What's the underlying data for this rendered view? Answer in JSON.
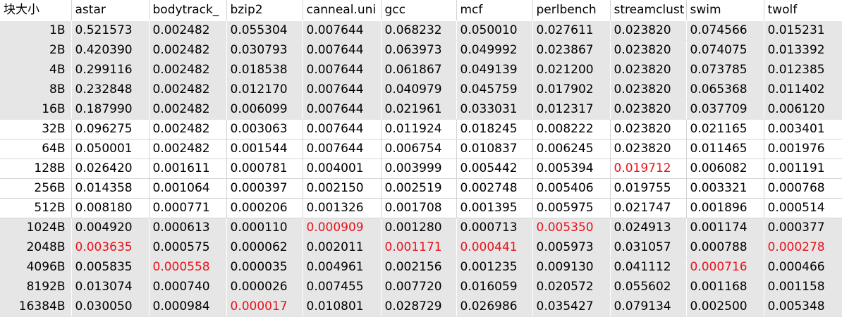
{
  "sheet": {
    "highlight_color": "#e8121b",
    "band_color": "#e6e6e6",
    "header": [
      "块大小",
      "astar",
      "bodytrack_",
      "bzip2",
      "canneal.uni",
      "gcc",
      "mcf",
      "perlbench",
      "streamclust",
      "swim",
      "twolf"
    ],
    "rows": [
      {
        "band": "grey",
        "cells": [
          "1B",
          "0.521573",
          "0.002482",
          "0.055304",
          "0.007644",
          "0.068232",
          "0.050010",
          "0.027611",
          "0.023820",
          "0.074566",
          "0.015231"
        ],
        "red": []
      },
      {
        "band": "grey",
        "cells": [
          "2B",
          "0.420390",
          "0.002482",
          "0.030793",
          "0.007644",
          "0.063973",
          "0.049992",
          "0.023867",
          "0.023820",
          "0.074075",
          "0.013392"
        ],
        "red": []
      },
      {
        "band": "grey",
        "cells": [
          "4B",
          "0.299116",
          "0.002482",
          "0.018538",
          "0.007644",
          "0.061867",
          "0.049139",
          "0.021200",
          "0.023820",
          "0.073785",
          "0.012385"
        ],
        "red": []
      },
      {
        "band": "grey",
        "cells": [
          "8B",
          "0.232848",
          "0.002482",
          "0.012170",
          "0.007644",
          "0.040979",
          "0.045759",
          "0.017902",
          "0.023820",
          "0.065368",
          "0.011402"
        ],
        "red": []
      },
      {
        "band": "grey",
        "cells": [
          "16B",
          "0.187990",
          "0.002482",
          "0.006099",
          "0.007644",
          "0.021961",
          "0.033031",
          "0.012317",
          "0.023820",
          "0.037709",
          "0.006120"
        ],
        "red": []
      },
      {
        "band": "white",
        "cells": [
          "32B",
          "0.096275",
          "0.002482",
          "0.003063",
          "0.007644",
          "0.011924",
          "0.018245",
          "0.008222",
          "0.023820",
          "0.021165",
          "0.003401"
        ],
        "red": []
      },
      {
        "band": "white",
        "cells": [
          "64B",
          "0.050001",
          "0.002482",
          "0.001544",
          "0.007644",
          "0.006754",
          "0.010837",
          "0.006245",
          "0.023820",
          "0.011465",
          "0.001976"
        ],
        "red": []
      },
      {
        "band": "white",
        "cells": [
          "128B",
          "0.026420",
          "0.001611",
          "0.000781",
          "0.004001",
          "0.003999",
          "0.005442",
          "0.005394",
          "0.019712",
          "0.006082",
          "0.001191"
        ],
        "red": [
          8
        ]
      },
      {
        "band": "white",
        "cells": [
          "256B",
          "0.014358",
          "0.001064",
          "0.000397",
          "0.002150",
          "0.002519",
          "0.002748",
          "0.005406",
          "0.019755",
          "0.003321",
          "0.000768"
        ],
        "red": []
      },
      {
        "band": "white",
        "cells": [
          "512B",
          "0.008180",
          "0.000771",
          "0.000206",
          "0.001326",
          "0.001708",
          "0.001395",
          "0.005975",
          "0.021747",
          "0.001896",
          "0.000514"
        ],
        "red": []
      },
      {
        "band": "grey",
        "cells": [
          "1024B",
          "0.004920",
          "0.000613",
          "0.000110",
          "0.000909",
          "0.001280",
          "0.000713",
          "0.005350",
          "0.024913",
          "0.001174",
          "0.000377"
        ],
        "red": [
          4,
          7
        ]
      },
      {
        "band": "grey",
        "cells": [
          "2048B",
          "0.003635",
          "0.000575",
          "0.000062",
          "0.002011",
          "0.001171",
          "0.000441",
          "0.005973",
          "0.031057",
          "0.000788",
          "0.000278"
        ],
        "red": [
          1,
          5,
          6,
          10
        ]
      },
      {
        "band": "grey",
        "cells": [
          "4096B",
          "0.005835",
          "0.000558",
          "0.000035",
          "0.004961",
          "0.002156",
          "0.001235",
          "0.009130",
          "0.041112",
          "0.000716",
          "0.000466"
        ],
        "red": [
          2,
          9
        ]
      },
      {
        "band": "grey",
        "cells": [
          "8192B",
          "0.013074",
          "0.000740",
          "0.000026",
          "0.007455",
          "0.007720",
          "0.016059",
          "0.020572",
          "0.055602",
          "0.001168",
          "0.001158"
        ],
        "red": []
      },
      {
        "band": "grey",
        "cells": [
          "16384B",
          "0.030050",
          "0.000984",
          "0.000017",
          "0.010801",
          "0.028729",
          "0.026986",
          "0.035427",
          "0.079134",
          "0.002500",
          "0.005348"
        ],
        "red": [
          3
        ]
      }
    ]
  }
}
